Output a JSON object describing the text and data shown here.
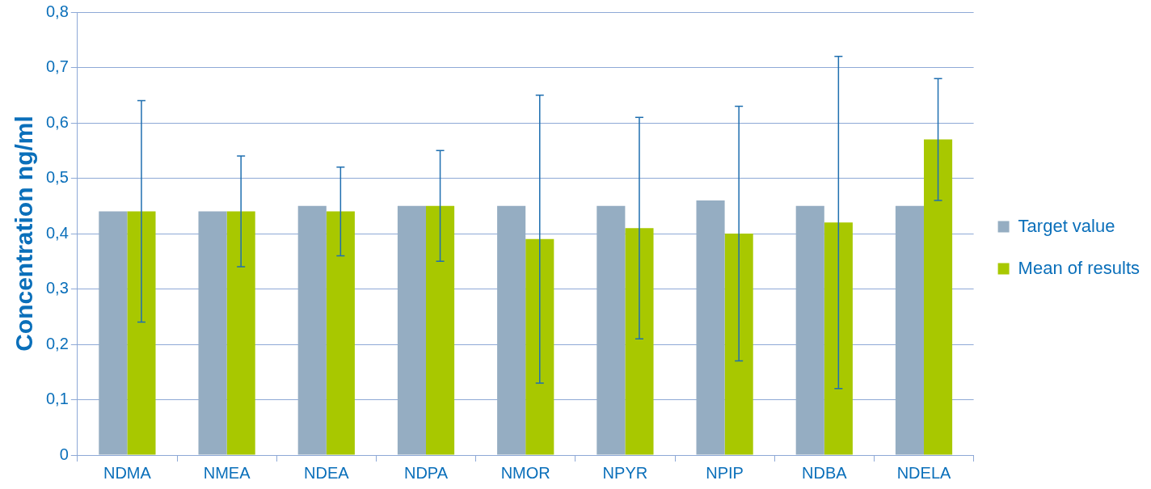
{
  "chart_data": {
    "type": "bar",
    "ylabel": "Concentration ng/ml",
    "categories": [
      "NDMA",
      "NMEA",
      "NDEA",
      "NDPA",
      "NMOR",
      "NPYR",
      "NPIP",
      "NDBA",
      "NDELA"
    ],
    "series": [
      {
        "name": "Target value",
        "color": "#95adc2",
        "values": [
          0.44,
          0.44,
          0.45,
          0.45,
          0.45,
          0.45,
          0.46,
          0.45,
          0.45
        ]
      },
      {
        "name": "Mean of results",
        "color": "#a8c800",
        "values": [
          0.44,
          0.44,
          0.44,
          0.45,
          0.39,
          0.41,
          0.4,
          0.42,
          0.57
        ],
        "errors": [
          [
            0.24,
            0.64
          ],
          [
            0.34,
            0.54
          ],
          [
            0.36,
            0.52
          ],
          [
            0.35,
            0.55
          ],
          [
            0.13,
            0.65
          ],
          [
            0.21,
            0.61
          ],
          [
            0.17,
            0.63
          ],
          [
            0.12,
            0.72
          ],
          [
            0.46,
            0.68
          ]
        ]
      }
    ],
    "ylim": [
      0,
      0.8
    ],
    "yticks": [
      0,
      {
        "value": 0.1,
        "label": "0,1"
      },
      {
        "value": 0.2,
        "label": "0,2"
      },
      {
        "value": 0.3,
        "label": "0,3"
      },
      {
        "value": 0.4,
        "label": "0,4"
      },
      {
        "value": 0.5,
        "label": "0,5"
      },
      {
        "value": 0.6,
        "label": "0,6"
      },
      {
        "value": 0.7,
        "label": "0,7"
      },
      {
        "value": 0.8,
        "label": "0,8"
      }
    ],
    "grid": "y",
    "legend": "right"
  }
}
